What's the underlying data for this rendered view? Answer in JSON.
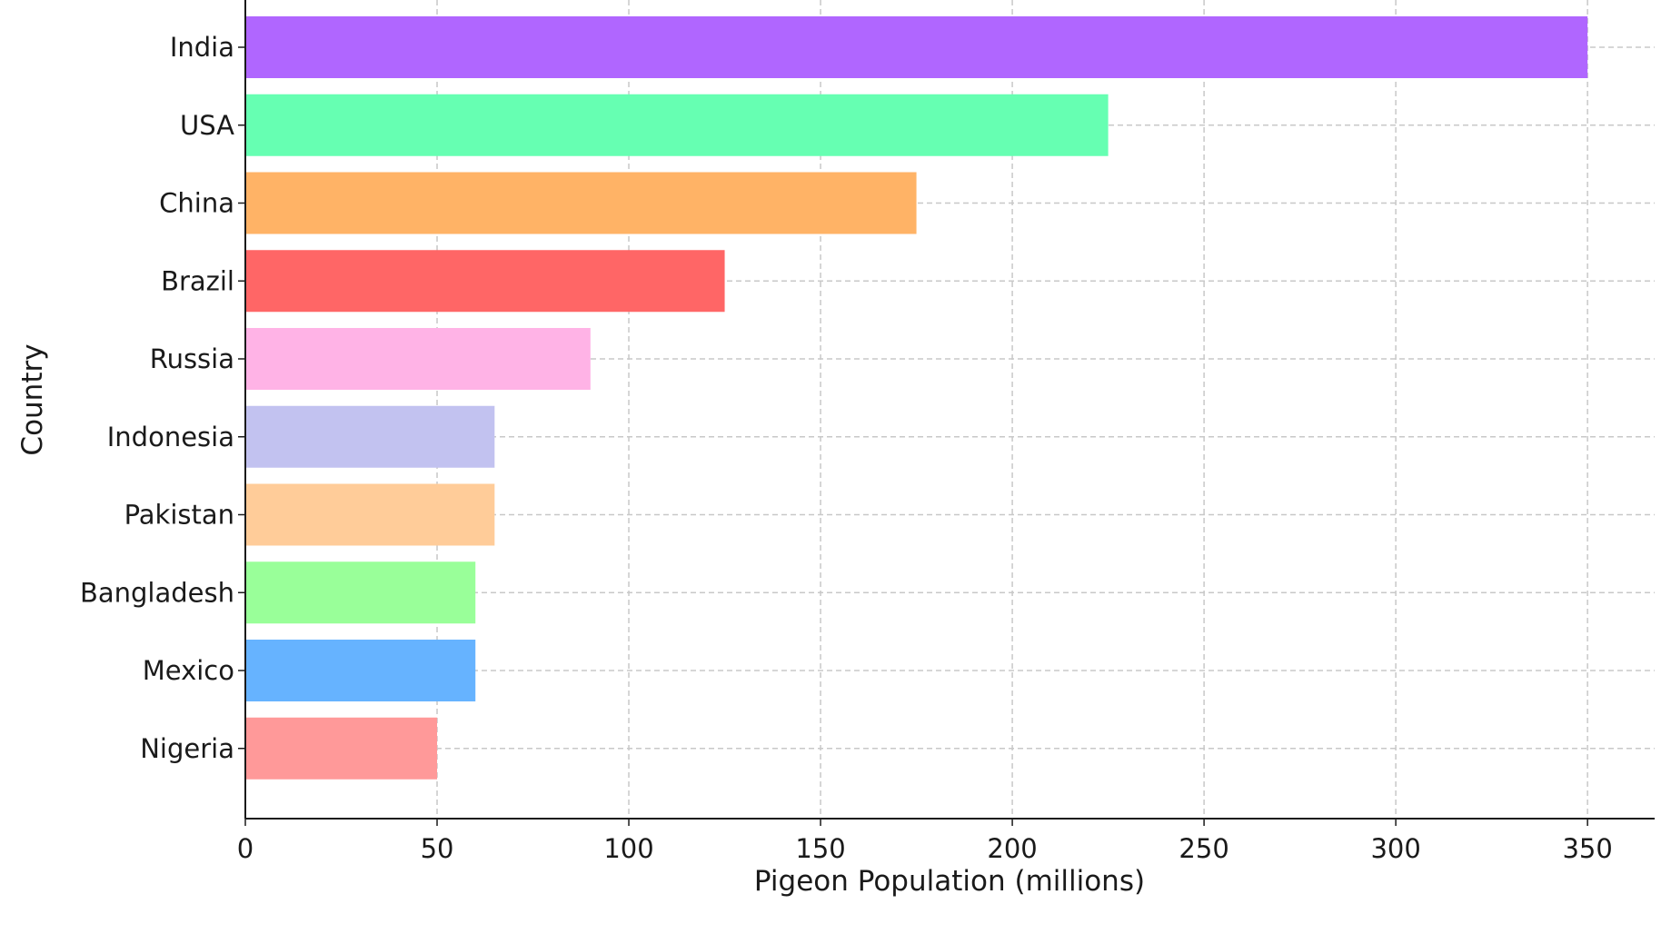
{
  "chart_data": {
    "type": "bar",
    "orientation": "horizontal",
    "title": "",
    "xlabel": "Pigeon Population (millions)",
    "ylabel": "Country",
    "categories": [
      "India",
      "USA",
      "China",
      "Brazil",
      "Russia",
      "Indonesia",
      "Pakistan",
      "Bangladesh",
      "Mexico",
      "Nigeria"
    ],
    "values": [
      350,
      225,
      175,
      125,
      90,
      65,
      65,
      60,
      60,
      50
    ],
    "colors": [
      "#b066ff",
      "#66ffb2",
      "#ffb366",
      "#ff6666",
      "#ffb3e6",
      "#c2c2f0",
      "#ffcc99",
      "#99ff99",
      "#66b3ff",
      "#ff9999"
    ],
    "xlim": [
      0,
      367.5
    ],
    "xticks": [
      0,
      50,
      100,
      150,
      200,
      250,
      300,
      350
    ],
    "grid": true
  }
}
